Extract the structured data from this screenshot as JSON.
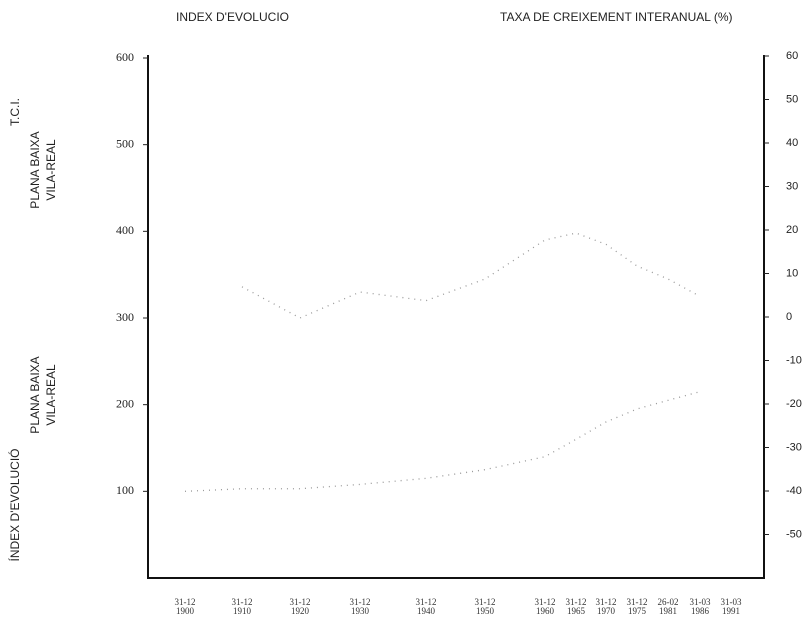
{
  "chart_data": {
    "type": "line",
    "title": "INDEX  D'EVOLUCIO",
    "y2_title": "TAXA  DE  CREIXEMENT  INTERANUAL  (%)",
    "ylabel_upper": [
      "PLANA BAIXA",
      "VILA-REAL",
      "T.C.I."
    ],
    "ylabel_lower": [
      "PLANA BAIXA",
      "VILA-REAL",
      "ÍNDEX  D'EVOLUCIÓ"
    ],
    "categories": [
      "31-12 1900",
      "31-12 1910",
      "31-12 1920",
      "31-12 1930",
      "31-12 1940",
      "31-12 1950",
      "31-12 1960",
      "31-12 1965",
      "31-12 1970",
      "31-12 1975",
      "26-02 1981",
      "31-03 1986",
      "31-03 1991"
    ],
    "series": [
      {
        "color": "#999999",
        "values": [
          null,
          336,
          300,
          330,
          320,
          345,
          390,
          398,
          385,
          360,
          345,
          325,
          null
        ]
      },
      {
        "color": "#999999",
        "values": [
          100,
          103,
          103,
          108,
          115,
          125,
          140,
          160,
          180,
          195,
          205,
          215,
          null
        ]
      }
    ],
    "ylim": [
      0,
      600
    ],
    "yticks": [
      100,
      200,
      300,
      400,
      500,
      600
    ],
    "y2lim": [
      -60,
      60
    ],
    "y2ticks": [
      60,
      50,
      40,
      30,
      20,
      10,
      0,
      -10,
      -20,
      -30,
      -40,
      -50
    ]
  }
}
